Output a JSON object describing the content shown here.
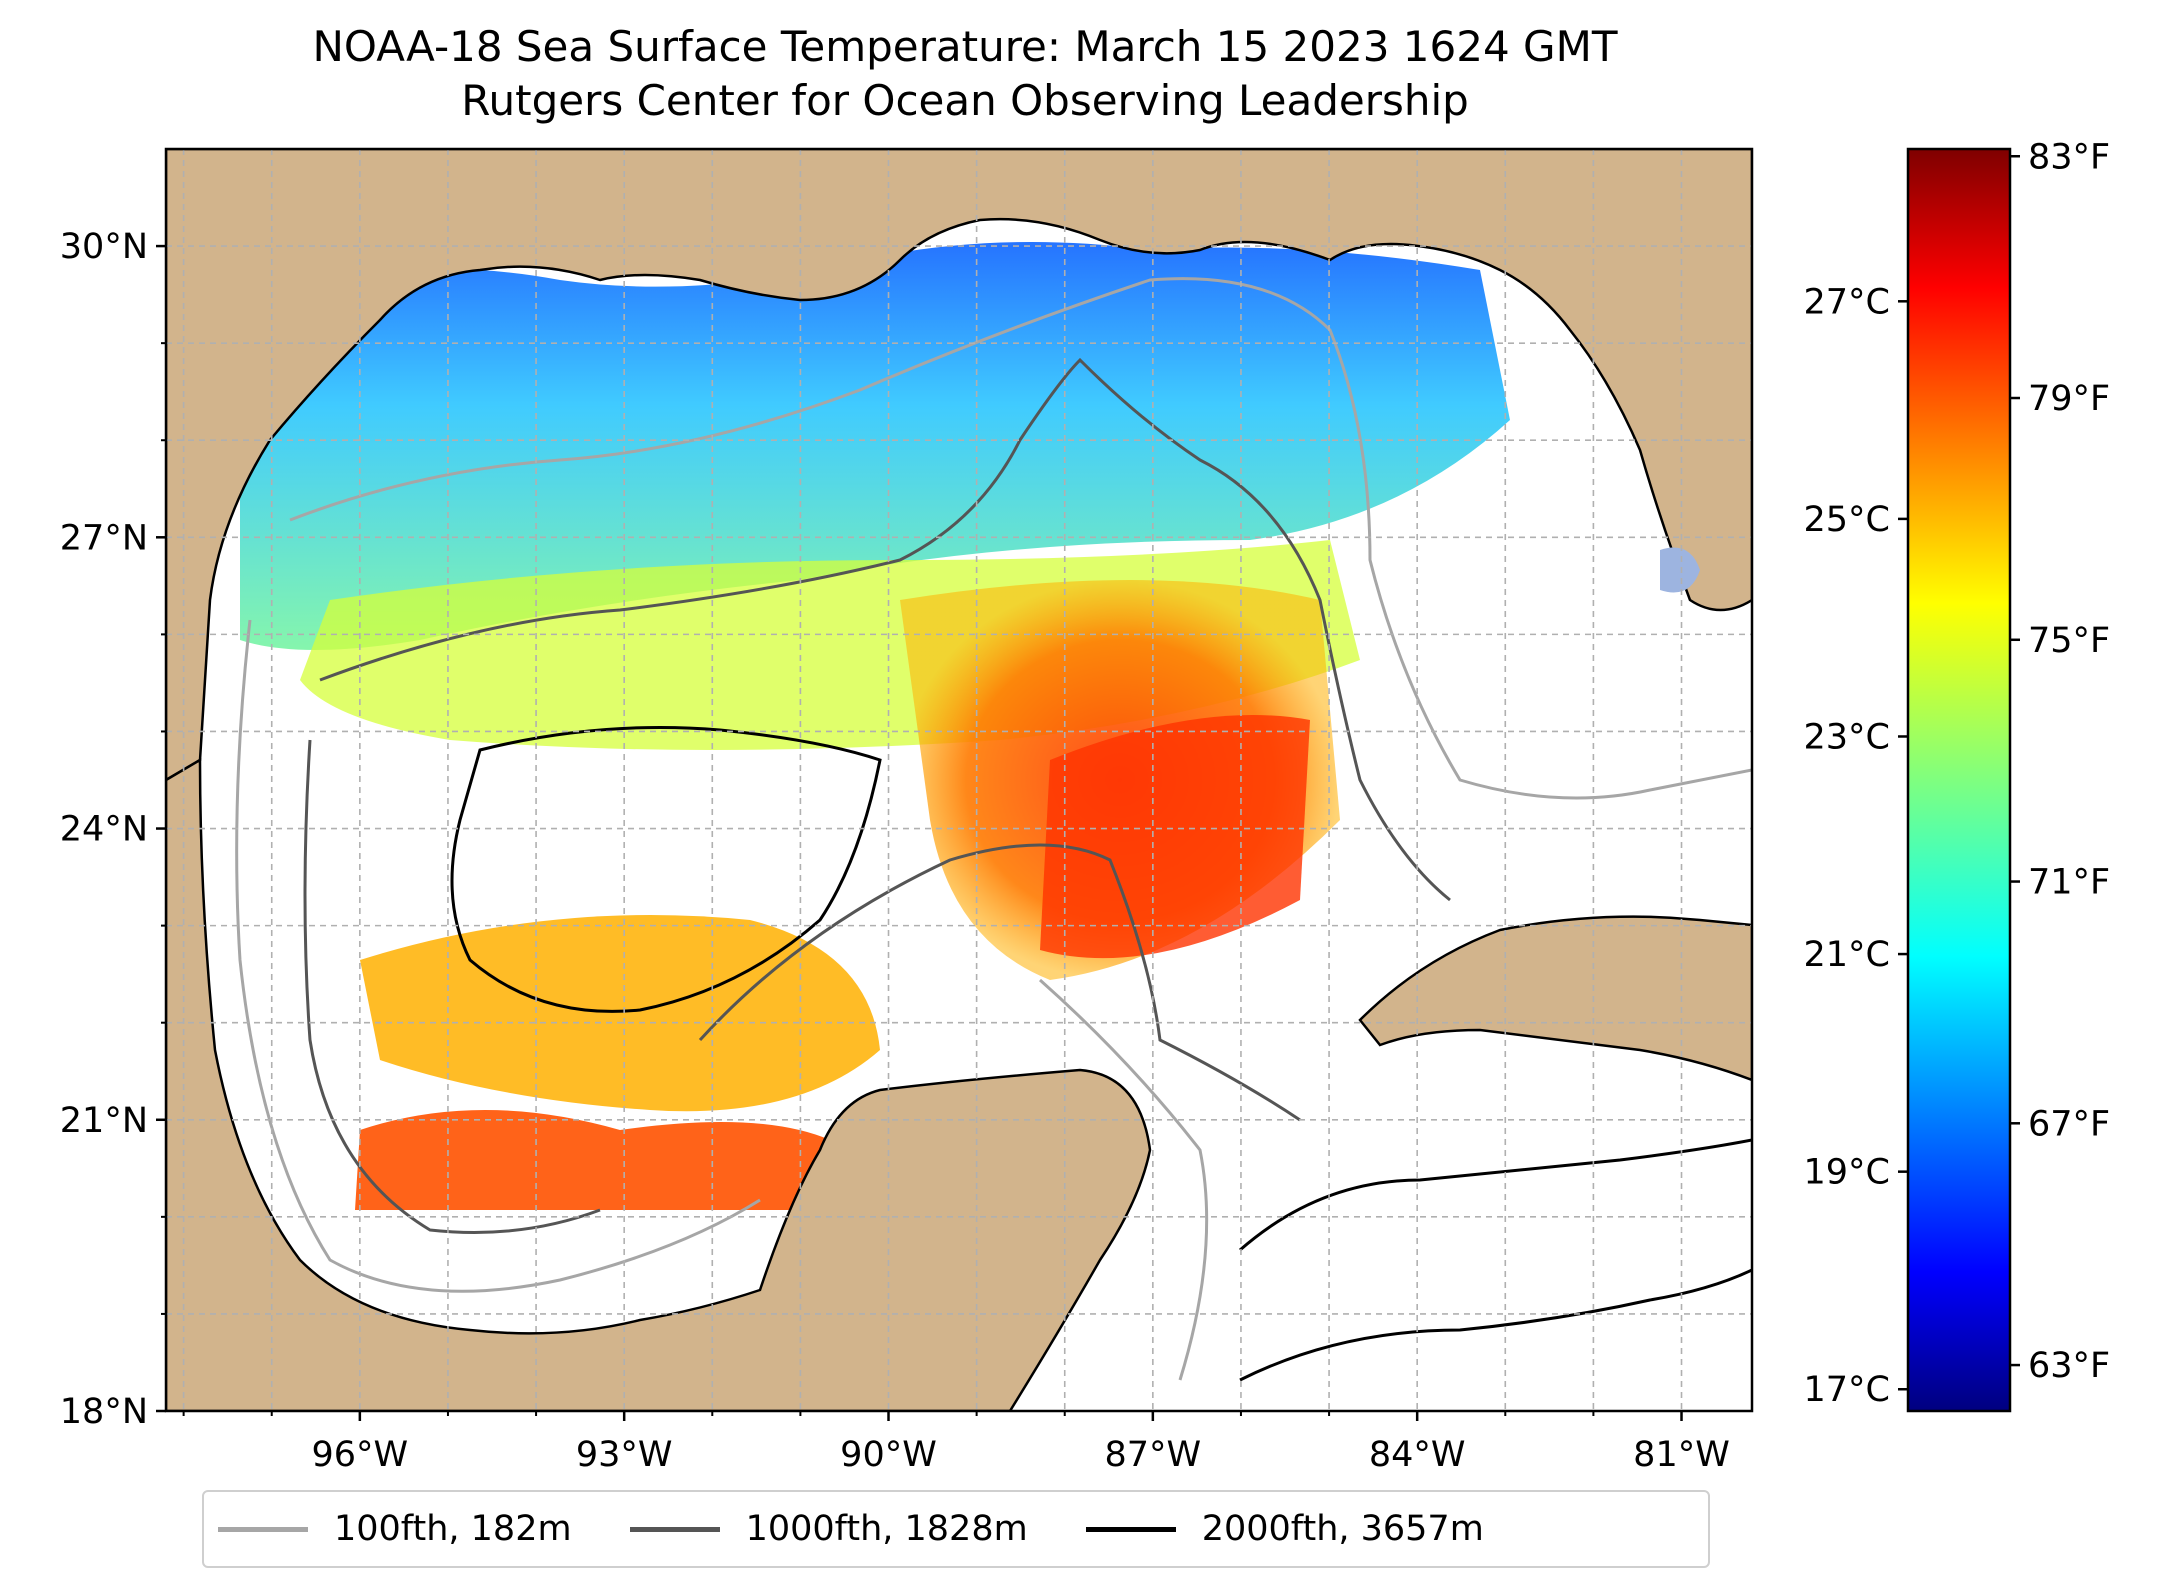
{
  "title": "NOAA-18 Sea Surface Temperature: March 15 2023 1624 GMT",
  "subtitle": "Rutgers Center for Ocean Observing Leadership",
  "map": {
    "region": "Gulf of Mexico",
    "lon_range": [
      -98.2,
      -80.2
    ],
    "lat_range": [
      18.0,
      31.0
    ],
    "grid": true,
    "land_color": "#d2b48c",
    "no_data_color": "#ffffff",
    "lat_ticks": [
      {
        "value": 18,
        "label": "18°N"
      },
      {
        "value": 21,
        "label": "21°N"
      },
      {
        "value": 24,
        "label": "24°N"
      },
      {
        "value": 27,
        "label": "27°N"
      },
      {
        "value": 30,
        "label": "30°N"
      }
    ],
    "lon_ticks": [
      {
        "value": -96,
        "label": "96°W"
      },
      {
        "value": -93,
        "label": "93°W"
      },
      {
        "value": -90,
        "label": "90°W"
      },
      {
        "value": -87,
        "label": "87°W"
      },
      {
        "value": -84,
        "label": "84°W"
      },
      {
        "value": -81,
        "label": "81°W"
      }
    ]
  },
  "colorbar": {
    "colormap": "jet",
    "range_c": [
      16.8,
      28.4
    ],
    "celsius_ticks": [
      {
        "value": 17,
        "label": "17°C"
      },
      {
        "value": 19,
        "label": "19°C"
      },
      {
        "value": 21,
        "label": "21°C"
      },
      {
        "value": 23,
        "label": "23°C"
      },
      {
        "value": 25,
        "label": "25°C"
      },
      {
        "value": 27,
        "label": "27°C"
      }
    ],
    "fahrenheit_ticks": [
      {
        "value": 63,
        "label": "63°F"
      },
      {
        "value": 67,
        "label": "67°F"
      },
      {
        "value": 71,
        "label": "71°F"
      },
      {
        "value": 75,
        "label": "75°F"
      },
      {
        "value": 79,
        "label": "79°F"
      },
      {
        "value": 83,
        "label": "83°F"
      }
    ]
  },
  "legend": {
    "placement": "bottom-center",
    "entries": [
      {
        "label": "100fth, 182m",
        "color": "#a6a6a6"
      },
      {
        "label": "1000fth, 1828m",
        "color": "#555555"
      },
      {
        "label": "2000fth, 3657m",
        "color": "#000000"
      }
    ]
  }
}
